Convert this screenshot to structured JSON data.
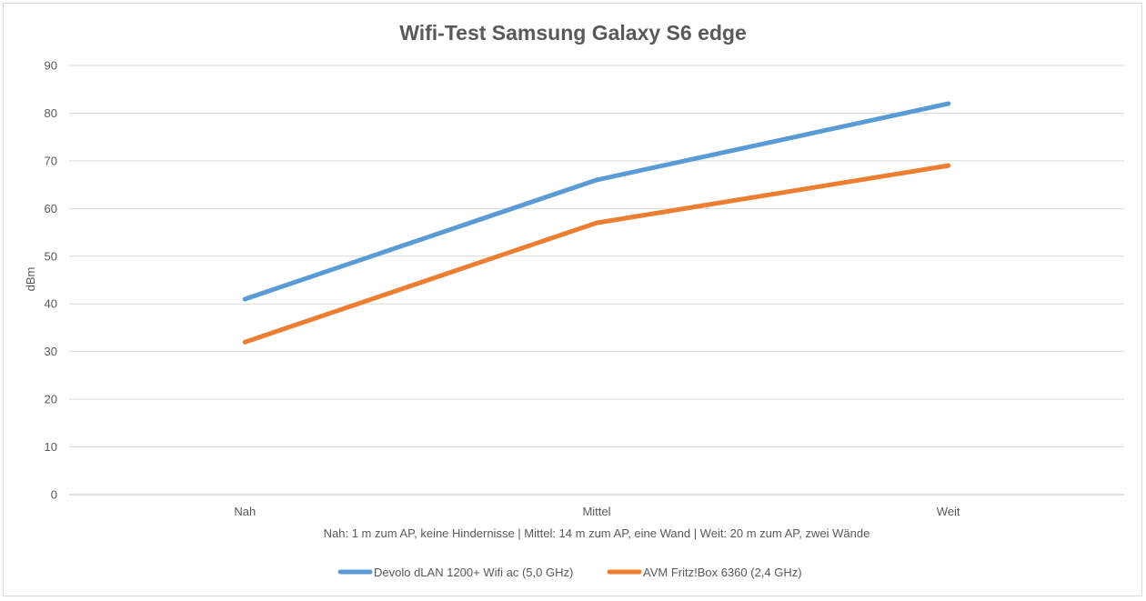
{
  "chart_data": {
    "type": "line",
    "title": "Wifi-Test Samsung Galaxy S6 edge",
    "xlabel": "Nah: 1 m zum AP, keine Hindernisse | Mittel: 14 m zum AP, eine Wand | Weit: 20 m zum AP, zwei Wände",
    "ylabel": "dBm",
    "categories": [
      "Nah",
      "Mittel",
      "Weit"
    ],
    "ylim": [
      0,
      90
    ],
    "yticks": [
      0,
      10,
      20,
      30,
      40,
      50,
      60,
      70,
      80,
      90
    ],
    "grid": true,
    "legend_position": "bottom",
    "series": [
      {
        "name": "Devolo dLAN 1200+ Wifi ac (5,0 GHz)",
        "values": [
          41,
          66,
          82
        ],
        "color": "#5b9bd5"
      },
      {
        "name": "AVM Fritz!Box 6360 (2,4 GHz)",
        "values": [
          32,
          57,
          69
        ],
        "color": "#ed7d31"
      }
    ]
  }
}
